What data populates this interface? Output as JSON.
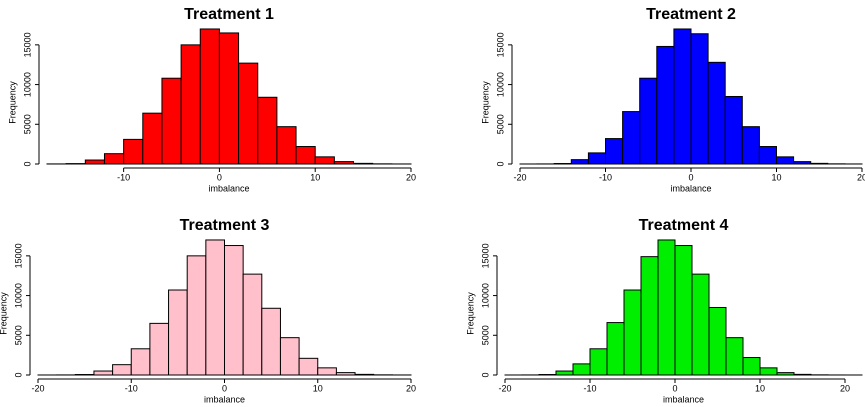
{
  "chart_data": [
    {
      "type": "histogram",
      "title": "Treatment 1",
      "xlabel": "imbalance",
      "ylabel": "Frequency",
      "color": "#ff0000",
      "bins": [
        -18,
        -16,
        -14,
        -12,
        -10,
        -8,
        -6,
        -4,
        -2,
        0,
        2,
        4,
        6,
        8,
        10,
        12,
        14,
        16,
        18,
        20
      ],
      "values": [
        10,
        50,
        500,
        1300,
        3100,
        6400,
        10800,
        15000,
        17000,
        16500,
        12700,
        8400,
        4700,
        2200,
        900,
        300,
        80,
        20,
        5
      ],
      "xlim": [
        -18,
        20
      ],
      "ylim": [
        0,
        17500
      ],
      "xticks": [
        -10,
        0,
        10,
        20
      ],
      "yticks": [
        0,
        5000,
        10000,
        15000
      ]
    },
    {
      "type": "histogram",
      "title": "Treatment 2",
      "xlabel": "imbalance",
      "ylabel": "Frequency",
      "color": "#0000ff",
      "bins": [
        -20,
        -18,
        -16,
        -14,
        -12,
        -10,
        -8,
        -6,
        -4,
        -2,
        0,
        2,
        4,
        6,
        8,
        10,
        12,
        14,
        16,
        18,
        20
      ],
      "values": [
        2,
        10,
        60,
        550,
        1400,
        3200,
        6600,
        10800,
        14800,
        17000,
        16400,
        12800,
        8500,
        4700,
        2200,
        900,
        300,
        80,
        20,
        5
      ],
      "xlim": [
        -20,
        20
      ],
      "ylim": [
        0,
        17500
      ],
      "xticks": [
        -20,
        -10,
        0,
        10,
        20
      ],
      "yticks": [
        0,
        5000,
        10000,
        15000
      ]
    },
    {
      "type": "histogram",
      "title": "Treatment 3",
      "xlabel": "imbalance",
      "ylabel": "Frequency",
      "color": "#ffc0cb",
      "bins": [
        -20,
        -18,
        -16,
        -14,
        -12,
        -10,
        -8,
        -6,
        -4,
        -2,
        0,
        2,
        4,
        6,
        8,
        10,
        12,
        14,
        16,
        18,
        20
      ],
      "values": [
        2,
        10,
        60,
        500,
        1300,
        3300,
        6500,
        10700,
        15000,
        17000,
        16300,
        12700,
        8400,
        4700,
        2100,
        900,
        300,
        80,
        20,
        5
      ],
      "xlim": [
        -20,
        20
      ],
      "ylim": [
        0,
        17500
      ],
      "xticks": [
        -20,
        -10,
        0,
        10,
        20
      ],
      "yticks": [
        0,
        5000,
        10000,
        15000
      ]
    },
    {
      "type": "histogram",
      "title": "Treatment 4",
      "xlabel": "imbalance",
      "ylabel": "Frequency",
      "color": "#00ee00",
      "bins": [
        -20,
        -18,
        -16,
        -14,
        -12,
        -10,
        -8,
        -6,
        -4,
        -2,
        0,
        2,
        4,
        6,
        8,
        10,
        12,
        14,
        16,
        18,
        20,
        22
      ],
      "values": [
        2,
        10,
        60,
        500,
        1400,
        3300,
        6600,
        10700,
        14900,
        17000,
        16300,
        12700,
        8500,
        4700,
        2200,
        900,
        300,
        80,
        20,
        5,
        1
      ],
      "xlim": [
        -20,
        22
      ],
      "ylim": [
        0,
        17500
      ],
      "xticks": [
        -20,
        -10,
        0,
        10,
        20
      ],
      "yticks": [
        0,
        5000,
        10000,
        15000
      ]
    }
  ]
}
